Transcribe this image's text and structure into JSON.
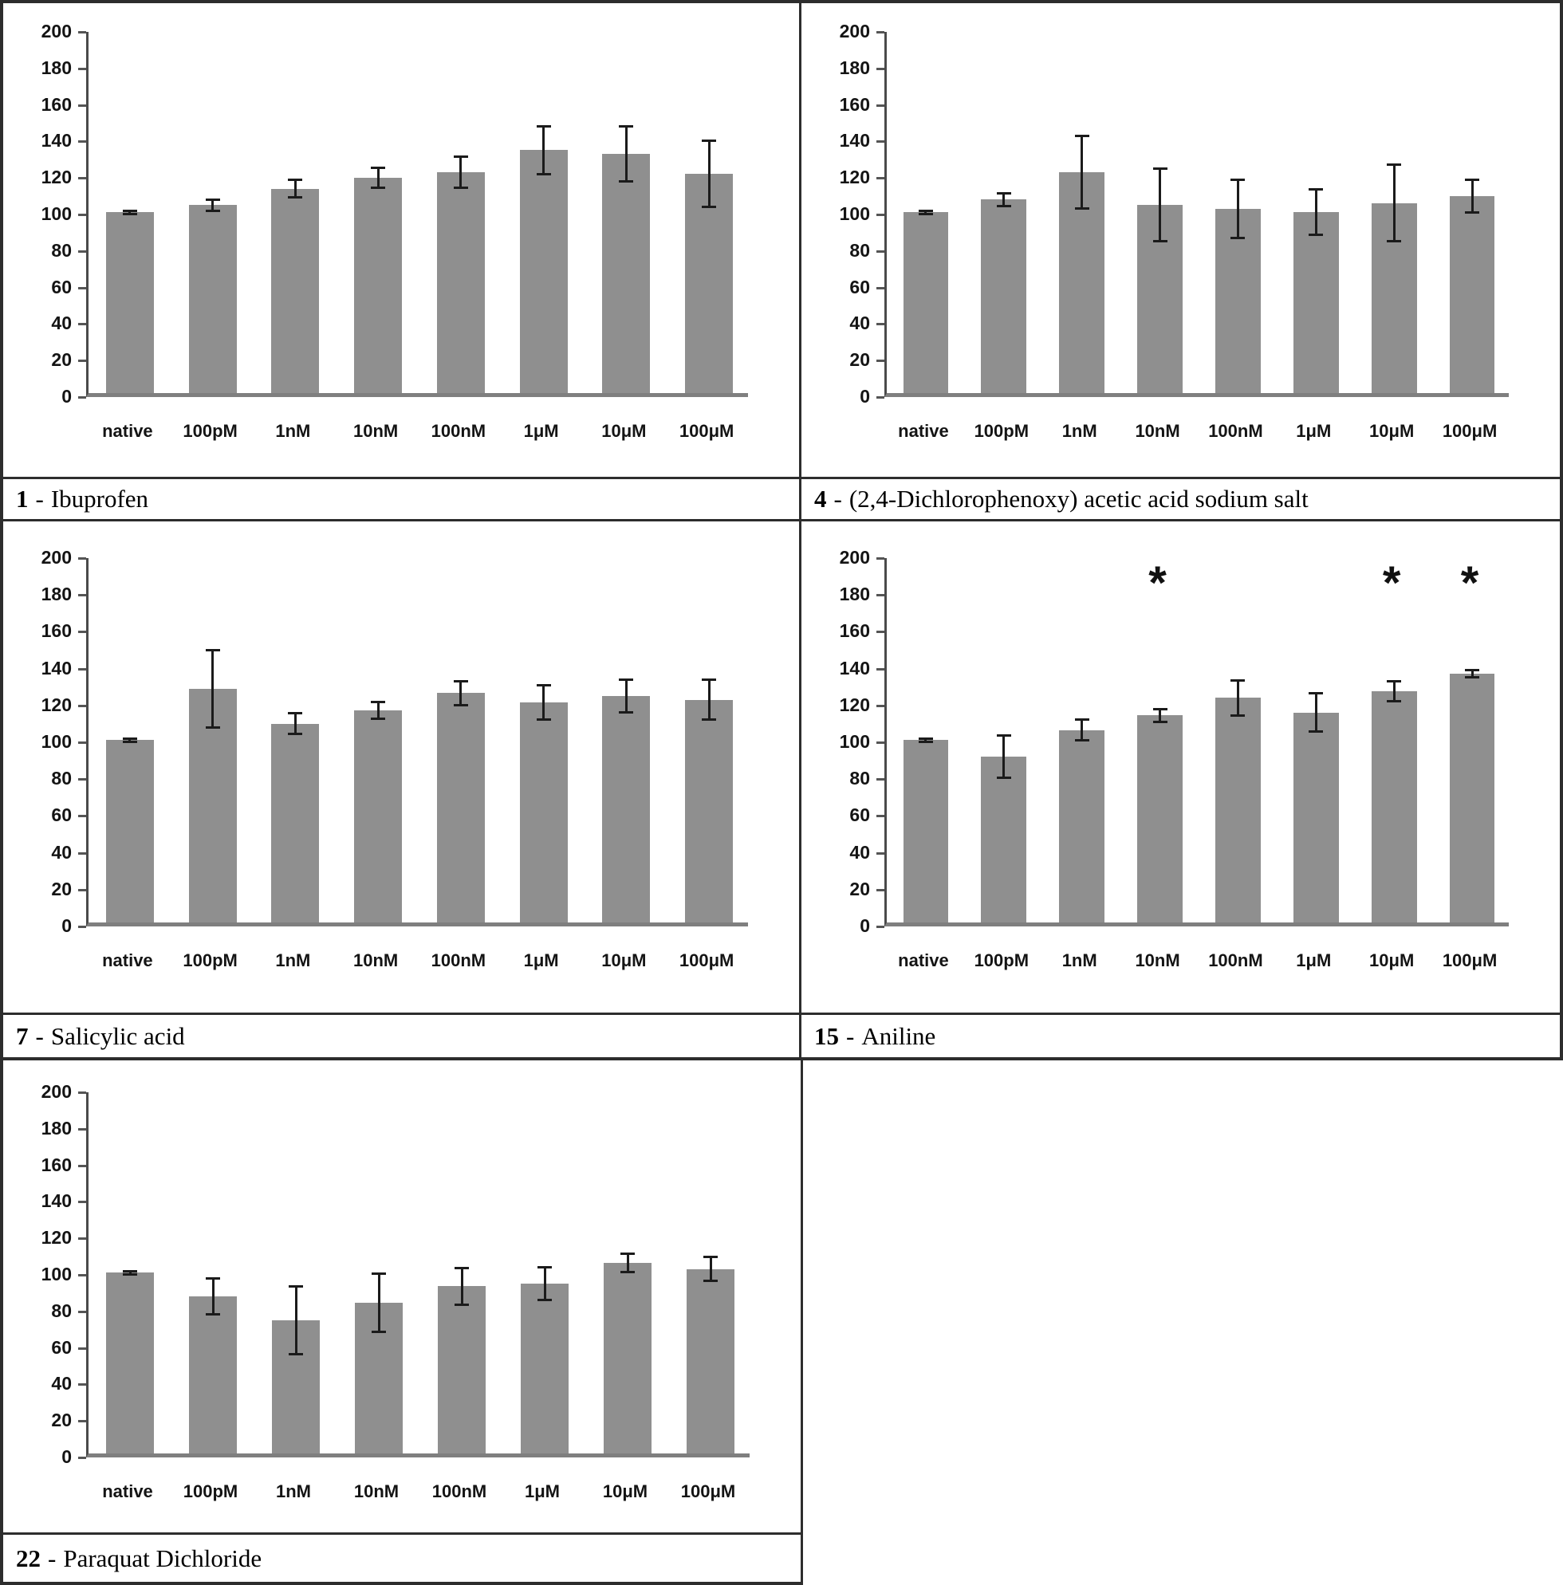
{
  "bar_color": "#8f8f8f",
  "error_color": "#1b1b1b",
  "border_color": "#2d2d2d",
  "axis_line_color": "#4a4a4a",
  "baseline_color": "#7f7f7f",
  "caption_separator": "-",
  "y_axis": {
    "ticks": [
      200,
      180,
      160,
      140,
      120,
      100,
      80,
      60,
      40,
      20,
      0
    ],
    "max": 200
  },
  "chart_data": [
    {
      "type": "bar",
      "caption_number": "1",
      "caption_name": "Ibuprofen",
      "categories": [
        "native",
        "100pM",
        "1nM",
        "10nM",
        "100nM",
        "1μM",
        "10μM",
        "100μM"
      ],
      "values": [
        99,
        103,
        112,
        118,
        121,
        133,
        131,
        120
      ],
      "errors": [
        1,
        3,
        5,
        5.5,
        8.5,
        13,
        15,
        18
      ],
      "asterisks": [],
      "asterisk_symbol": "*",
      "ylim": [
        0,
        200
      ]
    },
    {
      "type": "bar",
      "caption_number": "4",
      "caption_name": "(2,4-Dichlorophenoxy) acetic acid sodium salt",
      "categories": [
        "native",
        "100pM",
        "1nM",
        "10nM",
        "100nM",
        "1μM",
        "10μM",
        "100μM"
      ],
      "values": [
        99,
        106,
        121,
        103,
        101,
        99,
        104,
        108
      ],
      "errors": [
        0.8,
        3.5,
        20,
        20,
        16,
        12.5,
        21,
        9
      ],
      "asterisks": [],
      "asterisk_symbol": "*",
      "ylim": [
        0,
        200
      ]
    },
    {
      "type": "bar",
      "caption_number": "7",
      "caption_name": "Salicylic acid",
      "categories": [
        "native",
        "100pM",
        "1nM",
        "10nM",
        "100nM",
        "1μM",
        "10μM",
        "100μM"
      ],
      "values": [
        99,
        127,
        108,
        115,
        124.5,
        119.5,
        123,
        121
      ],
      "errors": [
        0.8,
        21,
        5.5,
        4.5,
        6.5,
        9.5,
        9,
        11
      ],
      "asterisks": [],
      "asterisk_symbol": "*",
      "ylim": [
        0,
        200
      ]
    },
    {
      "type": "bar",
      "caption_number": "15",
      "caption_name": "Aniline",
      "categories": [
        "native",
        "100pM",
        "1nM",
        "10nM",
        "100nM",
        "1μM",
        "10μM",
        "100μM"
      ],
      "values": [
        99,
        90,
        104.5,
        112.5,
        122,
        114,
        125.5,
        135
      ],
      "errors": [
        0.8,
        11.5,
        5.5,
        3.5,
        9.5,
        10.5,
        5.5,
        2
      ],
      "asterisks": [
        3,
        6,
        7
      ],
      "asterisk_symbol": "*",
      "ylim": [
        0,
        200
      ]
    },
    {
      "type": "bar",
      "caption_number": "22",
      "caption_name": "Paraquat Dichloride",
      "categories": [
        "native",
        "100pM",
        "1nM",
        "10nM",
        "100nM",
        "1μM",
        "10μM",
        "100μM"
      ],
      "values": [
        99,
        86,
        73,
        82.5,
        91.5,
        93,
        104.5,
        101
      ],
      "errors": [
        0.8,
        10,
        18.5,
        16,
        10,
        9,
        5,
        6.5
      ],
      "asterisks": [],
      "asterisk_symbol": "*",
      "ylim": [
        0,
        200
      ]
    }
  ]
}
